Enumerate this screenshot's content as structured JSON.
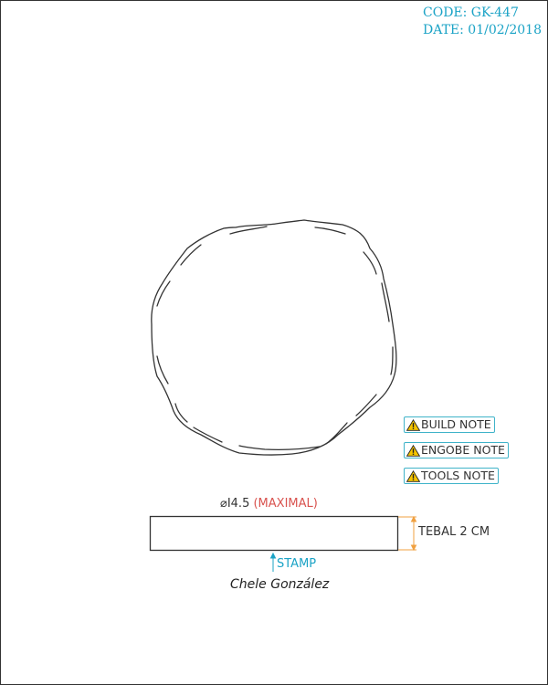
{
  "header": {
    "code": "CODE: GK-447",
    "date": "DATE: 01/02/2018"
  },
  "notes": [
    {
      "label": "BUILD NOTE",
      "icon": "warning-icon"
    },
    {
      "label": "ENGOBE NOTE",
      "icon": "warning-icon"
    },
    {
      "label": "TOOLS NOTE",
      "icon": "warning-icon"
    }
  ],
  "dimensions": {
    "diameter": "⌀I4.5",
    "diameter_qualifier": "(MAXIMAL)",
    "thickness": "TEBAL 2 CM"
  },
  "stamp": {
    "label": "STAMP"
  },
  "signature": "Chele González",
  "colors": {
    "accent": "#1ba3c6",
    "qualifier": "#d9534f",
    "thickness_dim": "#f0a040",
    "line": "#333333",
    "warning": "#f5c400"
  }
}
